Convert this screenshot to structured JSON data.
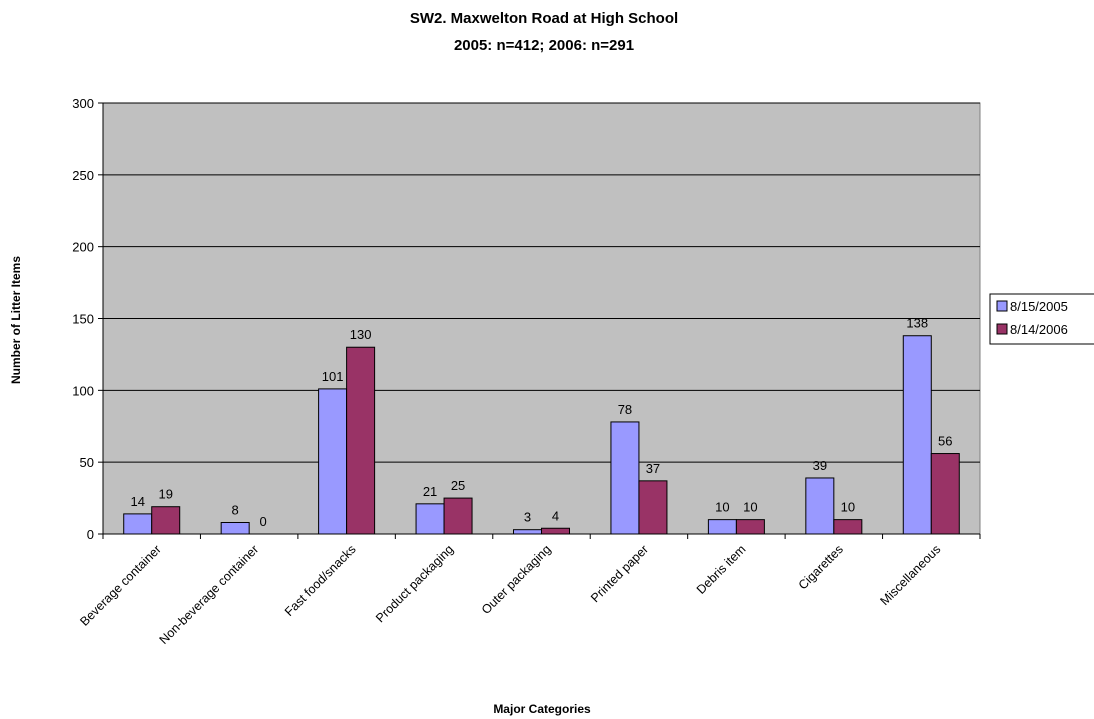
{
  "chart_data": {
    "type": "bar",
    "title": "SW2. Maxwelton Road at High School",
    "subtitle": "2005: n=412; 2006: n=291",
    "xlabel": "Major Categories",
    "ylabel": "Number of Litter Items",
    "ylim": [
      0,
      300
    ],
    "yticks": [
      0,
      50,
      100,
      150,
      200,
      250,
      300
    ],
    "categories": [
      "Beverage container",
      "Non-beverage container",
      "Fast food/snacks",
      "Product packaging",
      "Outer packaging",
      "Printed paper",
      "Debris item",
      "Cigarettes",
      "Miscellaneous"
    ],
    "series": [
      {
        "name": "8/15/2005",
        "values": [
          14,
          8,
          101,
          21,
          3,
          78,
          10,
          39,
          138
        ],
        "color": "#9999ff"
      },
      {
        "name": "8/14/2006",
        "values": [
          19,
          0,
          130,
          25,
          4,
          37,
          10,
          10,
          56
        ],
        "color": "#993366"
      }
    ],
    "plot_background": "#c0c0c0",
    "grid": true,
    "legend_position": "right"
  }
}
